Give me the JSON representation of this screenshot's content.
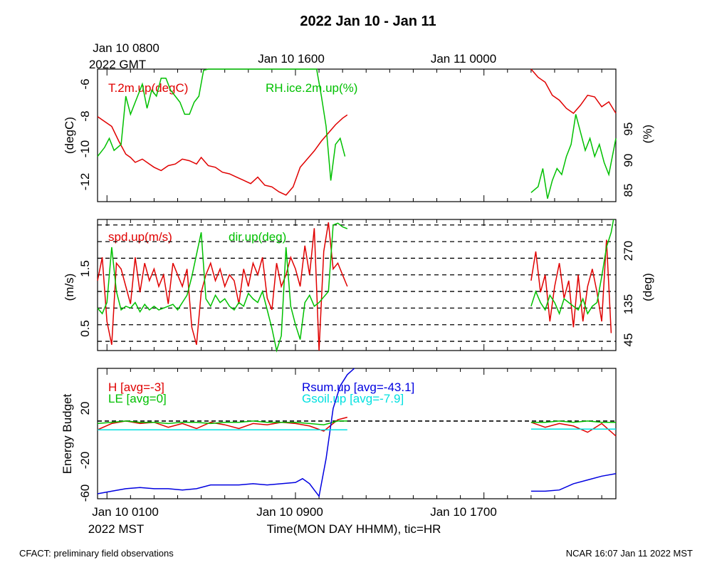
{
  "page": {
    "title": "2022 Jan 10 - Jan 11",
    "footer_left": "CFACT: preliminary field observations",
    "footer_right": "NCAR 16:07 Jan 11 2022 MST"
  },
  "axes": {
    "top": {
      "labels": [
        "Jan 10 0800",
        "Jan 10 1600",
        "Jan 11 0000"
      ],
      "zone": "2022 GMT"
    },
    "bottom": {
      "labels": [
        "Jan 10 0100",
        "Jan 10 0900",
        "Jan 10 1700"
      ],
      "zone": "2022 MST",
      "title": "Time(MON DAY HHMM), tic=HR"
    }
  },
  "colors": {
    "red": "#e00000",
    "green": "#00c000",
    "blue": "#0000e0",
    "cyan": "#00e0e0",
    "black": "#000000"
  },
  "chart_data": [
    {
      "type": "line",
      "panel": "temperature-humidity",
      "x_unit": "hours since Jan 10 0000 MST",
      "xlim": [
        0.6,
        22.6
      ],
      "ylabel_left": "(degC)",
      "ylabel_right": "(%)",
      "ylim_left": [
        -13.3,
        -5.2
      ],
      "ylim_right": [
        82.5,
        104.5
      ],
      "left_ticks": [
        "-6",
        "-8",
        "-10",
        "-12"
      ],
      "right_ticks": [
        "95",
        "90",
        "85"
      ],
      "series": [
        {
          "name": "T.2m.up(degC)",
          "color": "red",
          "axis": "left",
          "segments": [
            {
              "x": [
                0.6,
                0.9,
                1.2,
                1.5,
                1.8,
                2.0,
                2.2,
                2.5,
                2.8,
                3.0,
                3.3,
                3.6,
                3.9,
                4.2,
                4.5,
                4.8,
                5.0,
                5.3,
                5.6,
                5.9,
                6.2,
                6.5,
                6.8,
                7.1,
                7.4,
                7.7,
                8.0,
                8.3,
                8.6,
                8.9,
                9.2,
                9.5,
                9.8,
                10.1,
                10.4,
                10.7,
                11.0,
                11.2
              ],
              "y": [
                -8.1,
                -8.4,
                -8.7,
                -9.6,
                -10.4,
                -10.6,
                -10.9,
                -10.7,
                -11.0,
                -11.2,
                -11.4,
                -11.1,
                -11.0,
                -10.7,
                -10.8,
                -11.0,
                -10.6,
                -11.1,
                -11.2,
                -11.5,
                -11.6,
                -11.8,
                -12.0,
                -12.2,
                -11.8,
                -12.3,
                -12.4,
                -12.7,
                -12.9,
                -12.4,
                -11.2,
                -10.7,
                -10.2,
                -9.6,
                -9.1,
                -8.6,
                -8.2,
                -8.0
              ]
            },
            {
              "x": [
                19.0,
                19.3,
                19.6,
                19.9,
                20.2,
                20.5,
                20.8,
                21.1,
                21.4,
                21.7,
                22.0,
                22.3,
                22.6
              ],
              "y": [
                -5.2,
                -5.7,
                -6.0,
                -6.8,
                -7.1,
                -7.6,
                -7.9,
                -7.4,
                -6.8,
                -6.9,
                -7.5,
                -7.2,
                -7.9
              ]
            }
          ]
        },
        {
          "name": "RH.ice.2m.up(%)",
          "color": "green",
          "axis": "right",
          "segments": [
            {
              "x": [
                0.6,
                0.9,
                1.1,
                1.3,
                1.6,
                1.8,
                2.0,
                2.2,
                2.5,
                2.7,
                2.9,
                3.1,
                3.3,
                3.5,
                3.7,
                3.9,
                4.1,
                4.3,
                4.5,
                4.7,
                4.9,
                5.1,
                5.3,
                5.5,
                5.7,
                5.9,
                6.1,
                6.3,
                6.5,
                6.7,
                6.9,
                7.1,
                7.3,
                7.5,
                7.7,
                7.9,
                8.1,
                8.3,
                8.5,
                8.7,
                8.9,
                9.1,
                9.3,
                9.5,
                9.7,
                9.9,
                10.1,
                10.3,
                10.5,
                10.7,
                10.9,
                11.1
              ],
              "y": [
                90,
                91.5,
                93,
                91,
                92,
                100,
                97,
                99,
                102,
                98,
                101,
                100,
                103,
                103,
                101,
                100,
                99,
                97,
                97,
                99,
                100,
                104.3,
                104.5,
                104.5,
                104.5,
                104.5,
                104.5,
                104.5,
                104.5,
                104.5,
                104.5,
                104.5,
                104.5,
                104.5,
                104.5,
                104.5,
                104.5,
                104.5,
                104.5,
                104.5,
                104.5,
                104.5,
                104.5,
                104.5,
                104.5,
                104.5,
                100,
                95,
                86,
                92,
                93,
                90
              ]
            },
            {
              "x": [
                19.0,
                19.3,
                19.5,
                19.7,
                19.9,
                20.1,
                20.3,
                20.5,
                20.7,
                20.9,
                21.1,
                21.3,
                21.5,
                21.7,
                21.9,
                22.1,
                22.3,
                22.6
              ],
              "y": [
                84,
                85,
                88,
                83,
                86,
                88,
                87,
                90,
                92,
                97,
                94,
                91,
                93,
                90,
                92,
                89,
                87,
                93
              ]
            }
          ]
        }
      ]
    },
    {
      "type": "line",
      "panel": "wind",
      "x_unit": "hours since Jan 10 0000 MST",
      "xlim": [
        0.6,
        22.6
      ],
      "ylabel_left": "(m/s)",
      "ylabel_right": "(deg)",
      "ylim_left": [
        0.1,
        2.35
      ],
      "ylim_right": [
        20,
        375
      ],
      "left_ticks": [
        "1.5",
        "0.5"
      ],
      "right_ticks": [
        "270",
        "135",
        "45"
      ],
      "reference_lines_right_deg": [
        45,
        90,
        135,
        180,
        225,
        270,
        315,
        360
      ],
      "series": [
        {
          "name": "spd.up(m/s)",
          "color": "red",
          "axis": "left",
          "segments": [
            {
              "x": [
                0.6,
                0.8,
                1.0,
                1.2,
                1.4,
                1.6,
                1.8,
                2.0,
                2.2,
                2.4,
                2.6,
                2.8,
                3.0,
                3.2,
                3.4,
                3.6,
                3.8,
                4.0,
                4.2,
                4.4,
                4.6,
                4.8,
                5.0,
                5.2,
                5.4,
                5.6,
                5.8,
                6.0,
                6.2,
                6.4,
                6.6,
                6.8,
                7.0,
                7.2,
                7.4,
                7.6,
                7.8,
                8.0,
                8.2,
                8.4,
                8.6,
                8.8,
                9.0,
                9.2,
                9.4,
                9.6,
                9.8,
                10.0,
                10.2,
                10.4,
                10.6,
                10.8,
                11.0,
                11.2
              ],
              "y": [
                1.3,
                1.7,
                0.6,
                0.2,
                1.6,
                1.5,
                1.2,
                0.9,
                1.7,
                1.1,
                1.6,
                1.3,
                1.5,
                1.2,
                1.4,
                0.9,
                1.6,
                1.4,
                1.2,
                1.5,
                0.5,
                0.2,
                1.1,
                1.4,
                1.6,
                1.3,
                1.5,
                1.2,
                1.4,
                1.3,
                0.9,
                1.5,
                1.2,
                1.6,
                1.4,
                1.7,
                1.0,
                0.8,
                1.6,
                1.2,
                1.4,
                1.7,
                1.5,
                1.2,
                1.9,
                1.4,
                2.2,
                0.1,
                1.8,
                2.3,
                1.5,
                1.6,
                1.4,
                1.2
              ]
            },
            {
              "x": [
                19.0,
                19.2,
                19.4,
                19.6,
                19.8,
                20.0,
                20.2,
                20.4,
                20.6,
                20.8,
                21.0,
                21.2,
                21.4,
                21.6,
                21.8,
                22.0,
                22.2,
                22.4
              ],
              "y": [
                1.3,
                1.8,
                1.1,
                1.4,
                0.6,
                1.2,
                1.6,
                1.0,
                1.3,
                0.5,
                1.4,
                0.6,
                1.2,
                1.5,
                1.1,
                0.6,
                2.0,
                0.4
              ]
            }
          ]
        },
        {
          "name": "dir.up(deg)",
          "color": "green",
          "axis": "right",
          "segments": [
            {
              "x": [
                0.6,
                0.8,
                1.0,
                1.2,
                1.4,
                1.6,
                1.8,
                2.0,
                2.2,
                2.4,
                2.6,
                2.8,
                3.0,
                3.2,
                3.4,
                3.6,
                3.8,
                4.0,
                4.2,
                4.4,
                4.6,
                4.8,
                5.0,
                5.2,
                5.4,
                5.6,
                5.8,
                6.0,
                6.2,
                6.4,
                6.6,
                6.8,
                7.0,
                7.2,
                7.4,
                7.6,
                7.8,
                8.0,
                8.2,
                8.4,
                8.6,
                8.8,
                9.0,
                9.2,
                9.4,
                9.6,
                9.8,
                10.0,
                10.2,
                10.4,
                10.6,
                10.8,
                11.0,
                11.2
              ],
              "y": [
                135,
                120,
                150,
                300,
                180,
                130,
                140,
                135,
                150,
                125,
                145,
                130,
                140,
                130,
                135,
                140,
                145,
                130,
                150,
                170,
                220,
                280,
                340,
                160,
                140,
                170,
                150,
                160,
                140,
                130,
                150,
                140,
                175,
                160,
                150,
                180,
                130,
                80,
                20,
                60,
                300,
                140,
                90,
                50,
                150,
                170,
                140,
                150,
                165,
                180,
                360,
                365,
                355,
                350
              ]
            },
            {
              "x": [
                19.0,
                19.2,
                19.4,
                19.6,
                19.8,
                20.0,
                20.2,
                20.4,
                20.6,
                20.8,
                21.0,
                21.2,
                21.4,
                21.6,
                21.8,
                22.0,
                22.2,
                22.4,
                22.5
              ],
              "y": [
                140,
                180,
                150,
                130,
                170,
                150,
                120,
                160,
                150,
                140,
                130,
                160,
                120,
                140,
                150,
                220,
                300,
                340,
                375
              ]
            }
          ]
        }
      ]
    },
    {
      "type": "line",
      "panel": "energy-budget",
      "x_unit": "hours since Jan 10 0000 MST",
      "xlim": [
        0.6,
        22.6
      ],
      "ylabel_left": "Energy Budget",
      "ylim_left": [
        -62,
        42
      ],
      "left_ticks": [
        "20",
        "-20",
        "-60"
      ],
      "series": [
        {
          "name": "H",
          "legend": "H [avg=-3]",
          "color": "red",
          "segments": [
            {
              "x": [
                0.6,
                1.2,
                1.8,
                2.4,
                3.0,
                3.6,
                4.2,
                4.8,
                5.4,
                6.0,
                6.6,
                7.2,
                7.8,
                8.4,
                9.0,
                9.6,
                10.2,
                10.8,
                11.2
              ],
              "y": [
                -7,
                -2,
                0,
                -2,
                -1,
                -5,
                -2,
                -6,
                -1,
                -3,
                -6,
                -2,
                -3,
                -1,
                -2,
                -4,
                -8,
                1,
                3
              ]
            },
            {
              "x": [
                19.0,
                19.6,
                20.2,
                20.8,
                21.4,
                22.0,
                22.6
              ],
              "y": [
                -1,
                -5,
                -2,
                -4,
                -9,
                -2,
                -12
              ]
            }
          ]
        },
        {
          "name": "LE",
          "legend": "LE [avg=0]",
          "color": "green",
          "segments": [
            {
              "x": [
                0.6,
                1.2,
                1.8,
                2.4,
                3.0,
                3.6,
                4.2,
                4.8,
                5.4,
                6.0,
                6.6,
                7.2,
                7.8,
                8.4,
                9.0,
                9.6,
                10.2,
                10.8,
                11.2
              ],
              "y": [
                -2,
                -1,
                0,
                -1,
                -1,
                -2,
                -1,
                -1,
                -2,
                -1,
                -1,
                0,
                -1,
                -1,
                -1,
                -2,
                -3,
                0,
                0
              ]
            },
            {
              "x": [
                19.0,
                19.6,
                20.2,
                20.8,
                21.4,
                22.0,
                22.6
              ],
              "y": [
                -1,
                -1,
                0,
                -1,
                0,
                -1,
                -1
              ]
            }
          ]
        },
        {
          "name": "Rsum.up",
          "legend": "Rsum.up [avg=-43.1]",
          "color": "blue",
          "segments": [
            {
              "x": [
                0.6,
                1.2,
                1.8,
                2.4,
                3.0,
                3.6,
                4.2,
                4.8,
                5.4,
                6.0,
                6.6,
                7.2,
                7.8,
                8.4,
                9.0,
                9.3,
                9.6,
                9.8,
                10.0,
                10.3,
                10.6,
                10.9,
                11.2,
                11.5
              ],
              "y": [
                -58,
                -56,
                -54,
                -53,
                -54,
                -54,
                -55,
                -54,
                -51,
                -51,
                -51,
                -50,
                -51,
                -50,
                -49,
                -46,
                -50,
                -55,
                -60,
                -30,
                10,
                28,
                37,
                42
              ]
            },
            {
              "x": [
                19.0,
                19.6,
                20.2,
                20.8,
                21.4,
                22.0,
                22.6
              ],
              "y": [
                -56,
                -56,
                -55,
                -50,
                -47,
                -44,
                -42
              ]
            }
          ]
        },
        {
          "name": "Gsoil.up",
          "legend": "Gsoil.up [avg=-7.9]",
          "color": "cyan",
          "segments": [
            {
              "x": [
                0.6,
                11.2
              ],
              "y": [
                -7,
                -7
              ]
            },
            {
              "x": [
                19.0,
                22.6
              ],
              "y": [
                -6.5,
                -6.5
              ]
            }
          ]
        }
      ]
    }
  ]
}
